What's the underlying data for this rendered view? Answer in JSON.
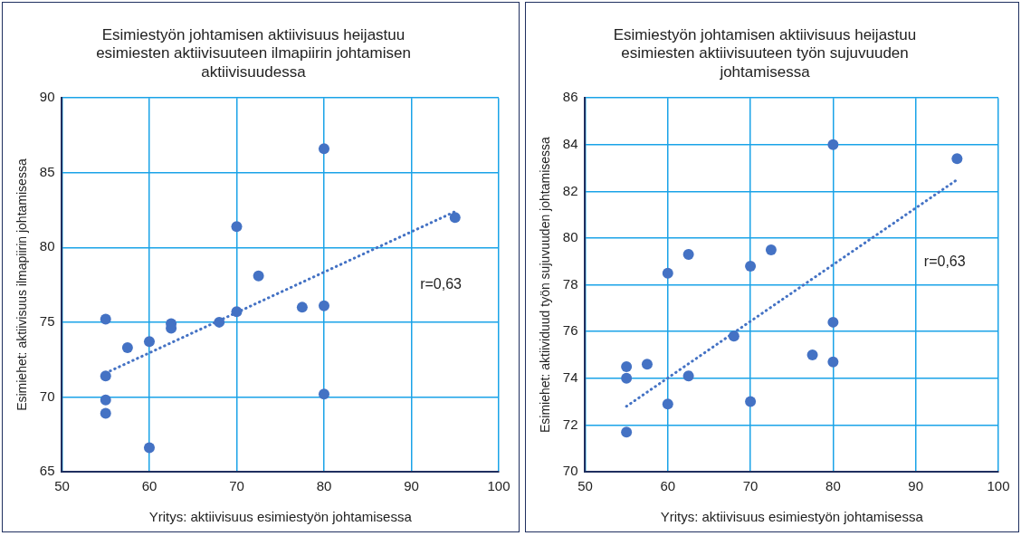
{
  "chart_data": [
    {
      "type": "scatter",
      "title": "Esimiestyön johtamisen aktiivisuus heijastuu esimiesten aktiivisuuteen ilmapiirin johtamisen aktiivisuudessa",
      "xlabel": "Yritys: aktiivisuus esimiestyön johtamisessa",
      "ylabel": "Esimiehet: aktiivisuus ilmapiirin johtamisessa",
      "xlim": [
        50,
        100
      ],
      "xticks": [
        50,
        60,
        70,
        80,
        90,
        100
      ],
      "ylim": [
        65,
        90
      ],
      "yticks": [
        65,
        70,
        75,
        80,
        85,
        90
      ],
      "grid": true,
      "legend": false,
      "annotations": [
        "r=0,63"
      ],
      "series": [
        {
          "color": "#4472c4",
          "marker": "circle",
          "x": [
            55,
            55,
            55,
            55,
            57.5,
            60,
            60,
            62.5,
            62.5,
            68,
            70,
            70,
            72.5,
            77.5,
            80,
            80,
            80,
            95
          ],
          "values": [
            75.2,
            71.4,
            69.8,
            68.9,
            73.3,
            73.7,
            66.6,
            74.9,
            74.6,
            75,
            75.7,
            81.4,
            78.1,
            76,
            76.1,
            86.6,
            70.2,
            82
          ]
        },
        {
          "type": "line",
          "color": "#4472c4",
          "marker": "none",
          "line_style": "dotted",
          "x": [
            55,
            95
          ],
          "values": [
            71.6,
            82.4
          ]
        }
      ]
    },
    {
      "type": "scatter",
      "title": "Esimiestyön johtamisen aktiivisuus heijastuu esimiesten aktiivisuuteen työn sujuvuuden johtamisessa",
      "xlabel": "Yritys: aktiivisuus esimiestyön johtamisessa",
      "ylabel": "Esimiehet: aktiividuud työn sujuvuuden johtamisessa",
      "xlim": [
        50,
        100
      ],
      "xticks": [
        50,
        60,
        70,
        80,
        90,
        100
      ],
      "ylim": [
        70,
        86
      ],
      "yticks": [
        70,
        72,
        74,
        76,
        78,
        80,
        82,
        84,
        86
      ],
      "grid": true,
      "legend": false,
      "annotations": [
        "r=0,63"
      ],
      "series": [
        {
          "color": "#4472c4",
          "marker": "circle",
          "x": [
            55,
            55,
            55,
            57.5,
            60,
            60,
            62.5,
            62.5,
            68,
            70,
            70,
            72.5,
            77.5,
            80,
            80,
            80,
            95
          ],
          "values": [
            74.5,
            74.0,
            71.7,
            74.6,
            78.5,
            72.9,
            79.3,
            74.1,
            75.8,
            78.8,
            73.0,
            79.5,
            75.0,
            84.0,
            76.4,
            74.7,
            83.4
          ]
        },
        {
          "type": "line",
          "color": "#4472c4",
          "marker": "none",
          "line_style": "dotted",
          "x": [
            55,
            95
          ],
          "values": [
            72.8,
            82.5
          ]
        }
      ]
    }
  ]
}
